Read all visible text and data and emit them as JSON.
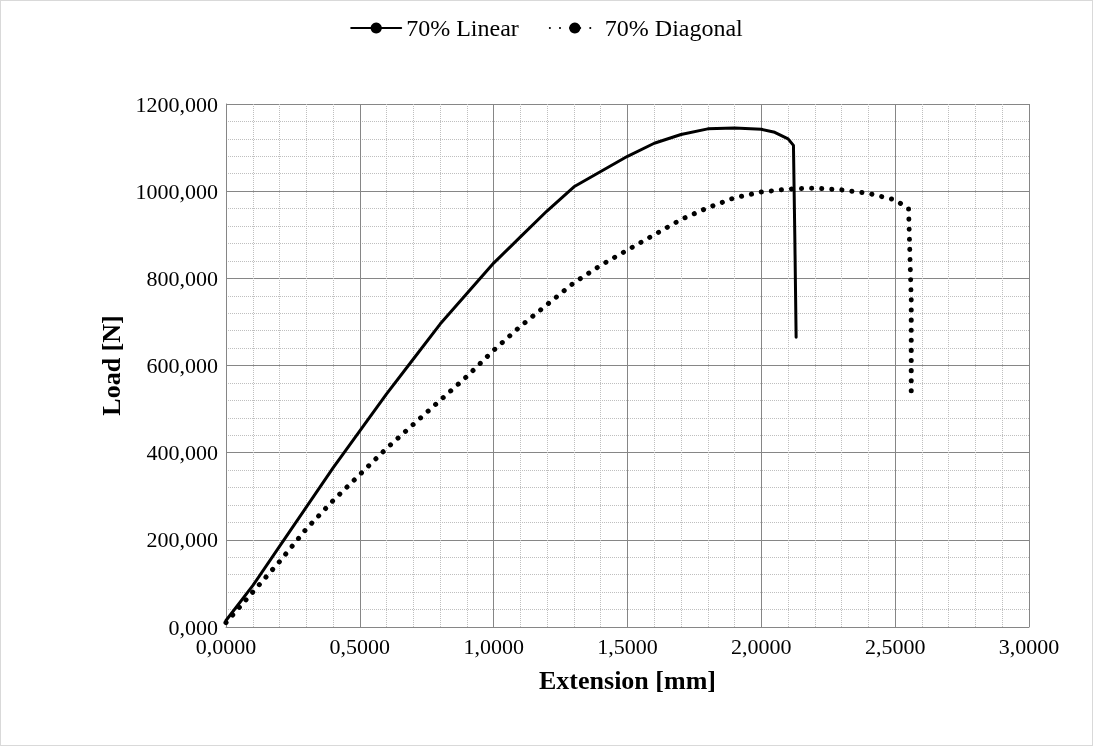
{
  "chart_data": {
    "type": "line",
    "xlabel": "Extension [mm]",
    "ylabel": "Load [N]",
    "xlim": [
      0,
      3
    ],
    "xticks": [
      {
        "value": 0,
        "label": "0,0000"
      },
      {
        "value": 0.5,
        "label": "0,5000"
      },
      {
        "value": 1,
        "label": "1,0000"
      },
      {
        "value": 1.5,
        "label": "1,5000"
      },
      {
        "value": 2,
        "label": "2,0000"
      },
      {
        "value": 2.5,
        "label": "2,5000"
      },
      {
        "value": 3,
        "label": "3,0000"
      }
    ],
    "ylim": [
      0,
      1200
    ],
    "yticks": [
      {
        "value": 0,
        "label": "0,000"
      },
      {
        "value": 200,
        "label": "200,000"
      },
      {
        "value": 400,
        "label": "400,000"
      },
      {
        "value": 600,
        "label": "600,000"
      },
      {
        "value": 800,
        "label": "800,000"
      },
      {
        "value": 1000,
        "label": "1000,000"
      },
      {
        "value": 1200,
        "label": "1200,000"
      }
    ],
    "grid": true,
    "legend": "top",
    "marker": "none",
    "series": [
      {
        "name": "70% Linear",
        "color": "#000000",
        "line_style": "solid",
        "x": [
          0,
          0.1,
          0.2,
          0.3,
          0.4,
          0.5,
          0.6,
          0.7,
          0.8,
          0.9,
          1.0,
          1.1,
          1.2,
          1.3,
          1.4,
          1.5,
          1.6,
          1.7,
          1.8,
          1.9,
          2.0,
          2.05,
          2.1,
          2.12,
          2.125,
          2.13
        ],
        "values": [
          15,
          95,
          185,
          275,
          365,
          450,
          535,
          615,
          695,
          765,
          835,
          895,
          955,
          1010,
          1045,
          1080,
          1110,
          1130,
          1143,
          1145,
          1142,
          1135,
          1120,
          1105,
          900,
          665
        ]
      },
      {
        "name": "70% Diagonal",
        "color": "#000000",
        "line_style": "dotted",
        "x": [
          0,
          0.1,
          0.2,
          0.3,
          0.4,
          0.5,
          0.6,
          0.7,
          0.8,
          0.9,
          1.0,
          1.1,
          1.2,
          1.3,
          1.4,
          1.5,
          1.6,
          1.7,
          1.8,
          1.9,
          2.0,
          2.1,
          2.2,
          2.3,
          2.4,
          2.5,
          2.55,
          2.56,
          2.56
        ],
        "values": [
          10,
          80,
          150,
          225,
          290,
          350,
          410,
          465,
          520,
          575,
          635,
          690,
          740,
          790,
          830,
          865,
          900,
          935,
          962,
          985,
          998,
          1005,
          1007,
          1003,
          995,
          980,
          960,
          750,
          535
        ]
      }
    ]
  }
}
